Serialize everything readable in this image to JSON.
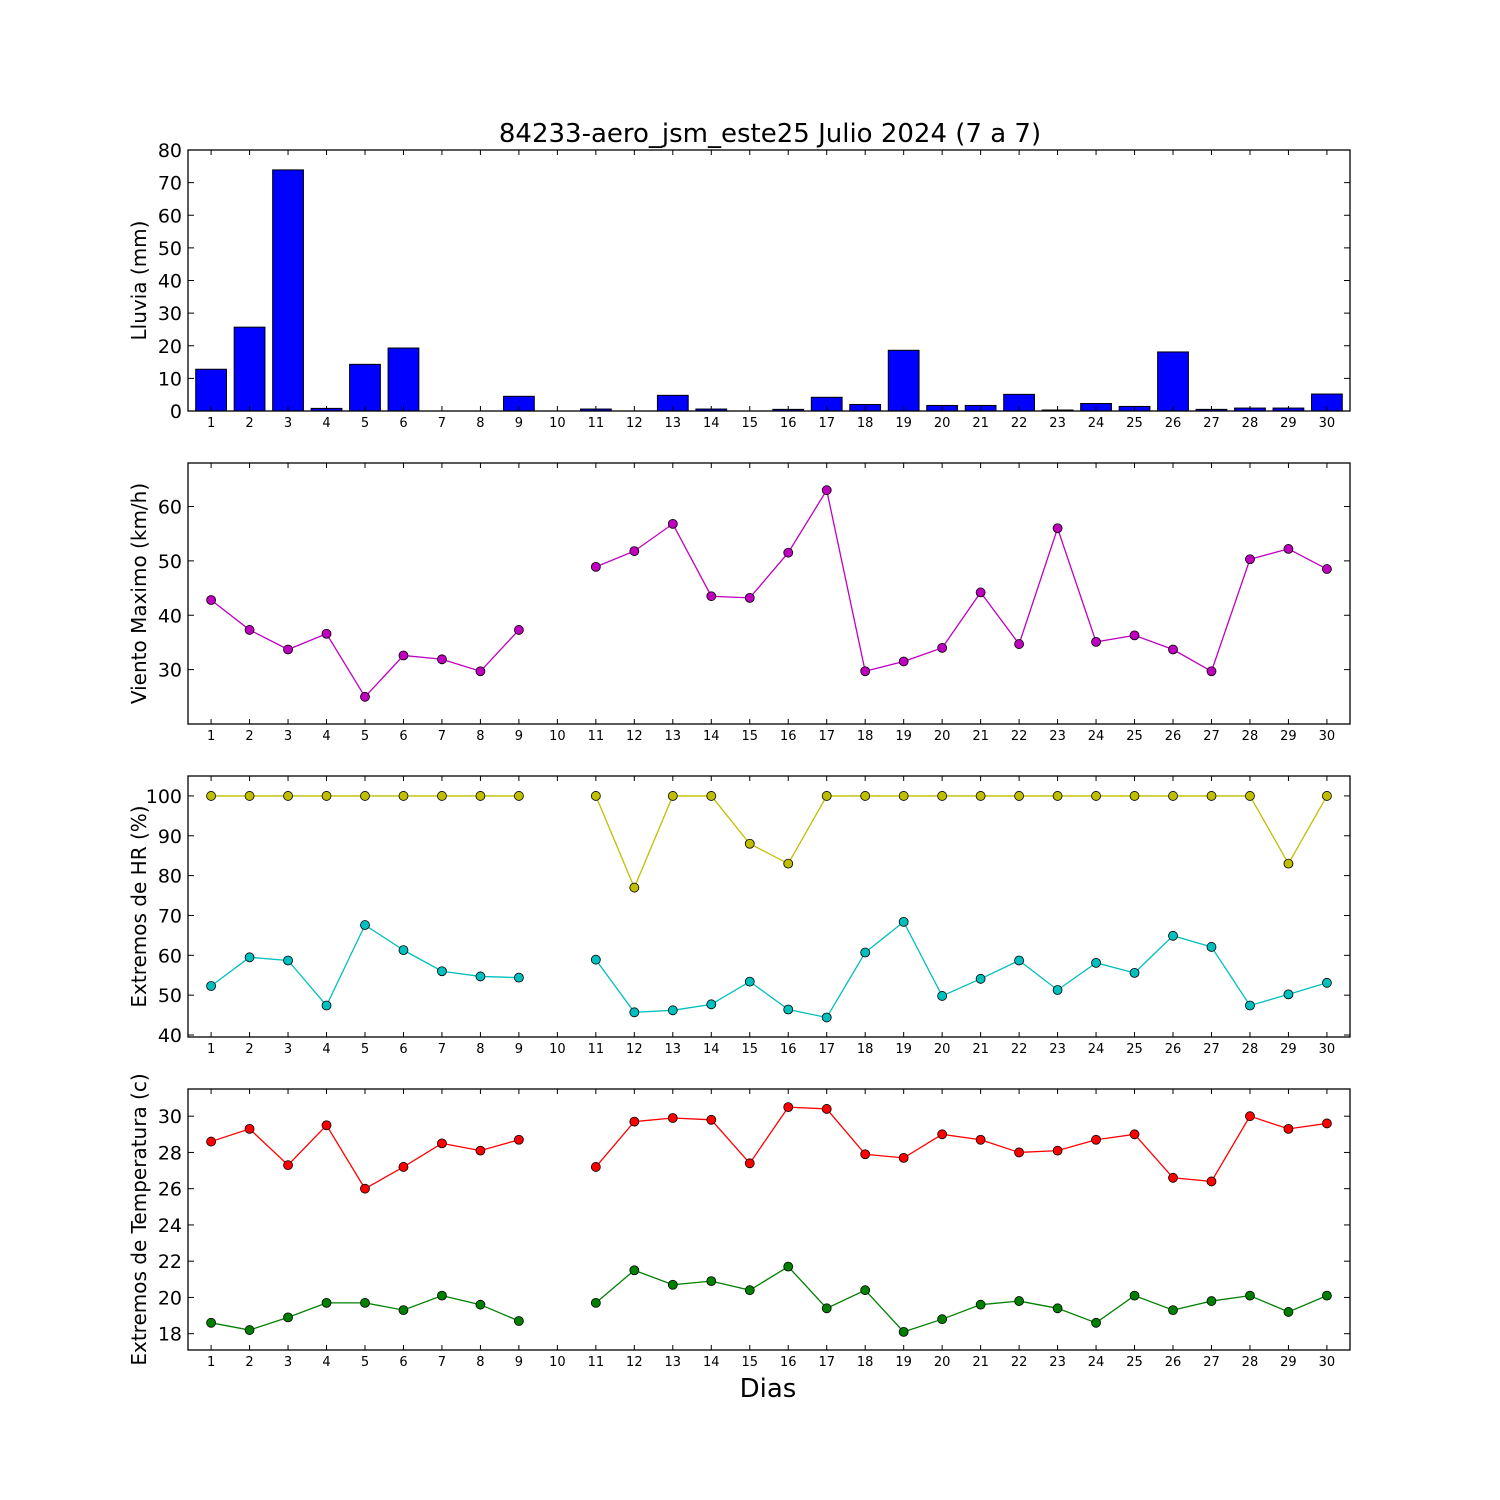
{
  "chart_data": {
    "type": "multi-panel",
    "title": "84233-aero_jsm_este25 Julio 2024  (7 a 7)",
    "xlabel": "Dias",
    "days": [
      1,
      2,
      3,
      4,
      5,
      6,
      7,
      8,
      9,
      10,
      11,
      12,
      13,
      14,
      15,
      16,
      17,
      18,
      19,
      20,
      21,
      22,
      23,
      24,
      25,
      26,
      27,
      28,
      29,
      30
    ],
    "panels": [
      {
        "type": "bar",
        "ylabel": "Lluvia (mm)",
        "ylim": [
          0,
          80
        ],
        "yticks": [
          0,
          10,
          20,
          30,
          40,
          50,
          60,
          70,
          80
        ],
        "series": [
          {
            "color": "#0000ff",
            "values": [
              12.8,
              25.7,
              73.9,
              0.8,
              14.3,
              19.3,
              0,
              0,
              4.5,
              0,
              0.6,
              0,
              4.8,
              0.6,
              0,
              0.5,
              4.2,
              2.0,
              18.6,
              1.7,
              1.7,
              5.1,
              0.3,
              2.3,
              1.4,
              18.1,
              0.5,
              0.9,
              0.9,
              5.2
            ]
          }
        ]
      },
      {
        "type": "line",
        "ylabel": "Viento Maximo (km/h)",
        "ylim": [
          20,
          68
        ],
        "yticks": [
          30,
          40,
          50,
          60
        ],
        "series": [
          {
            "color": "#bf00bf",
            "values": [
              42.8,
              37.3,
              33.7,
              36.6,
              25.0,
              32.6,
              31.9,
              29.7,
              37.3,
              null,
              48.9,
              51.8,
              56.8,
              43.5,
              43.2,
              51.5,
              63.0,
              29.7,
              31.5,
              34.0,
              44.2,
              34.7,
              56.0,
              35.1,
              36.3,
              33.7,
              29.7,
              50.3,
              52.2,
              48.5
            ]
          }
        ]
      },
      {
        "type": "line",
        "ylabel": "Extremos de HR (%)",
        "ylim": [
          39.5,
          105
        ],
        "yticks": [
          40,
          50,
          60,
          70,
          80,
          90,
          100
        ],
        "series": [
          {
            "color": "#bfbf00",
            "values": [
              100,
              100,
              100,
              100,
              100,
              100,
              100,
              100,
              100,
              null,
              100,
              77,
              100,
              100,
              88,
              83,
              100,
              100,
              100,
              100,
              100,
              100,
              100,
              100,
              100,
              100,
              100,
              100,
              83,
              100
            ]
          },
          {
            "color": "#00bfbf",
            "values": [
              52.3,
              59.5,
              58.7,
              47.4,
              67.6,
              61.3,
              56.0,
              54.7,
              54.4,
              null,
              58.9,
              45.7,
              46.2,
              47.7,
              53.4,
              46.4,
              44.4,
              60.7,
              68.4,
              49.8,
              54.1,
              58.7,
              51.3,
              58.1,
              55.6,
              64.9,
              62.1,
              47.4,
              50.2,
              53.1
            ]
          }
        ]
      },
      {
        "type": "line",
        "ylabel": "Extremos de Temperatura (c)",
        "ylim": [
          17.1,
          31.5
        ],
        "yticks": [
          18,
          20,
          22,
          24,
          26,
          28,
          30
        ],
        "series": [
          {
            "color": "#ff0000",
            "values": [
              28.6,
              29.3,
              27.3,
              29.5,
              26.0,
              27.2,
              28.5,
              28.1,
              28.7,
              null,
              27.2,
              29.7,
              29.9,
              29.8,
              27.4,
              30.5,
              30.4,
              27.9,
              27.7,
              29.0,
              28.7,
              28.0,
              28.1,
              28.7,
              29.0,
              26.6,
              26.4,
              30.0,
              29.3,
              29.6
            ]
          },
          {
            "color": "#008000",
            "values": [
              18.6,
              18.2,
              18.9,
              19.7,
              19.7,
              19.3,
              20.1,
              19.6,
              18.7,
              null,
              19.7,
              21.5,
              20.7,
              20.9,
              20.4,
              21.7,
              19.4,
              20.4,
              18.1,
              18.8,
              19.6,
              19.8,
              19.4,
              18.6,
              20.1,
              19.3,
              19.8,
              20.1,
              19.2,
              20.1
            ]
          }
        ]
      }
    ]
  }
}
